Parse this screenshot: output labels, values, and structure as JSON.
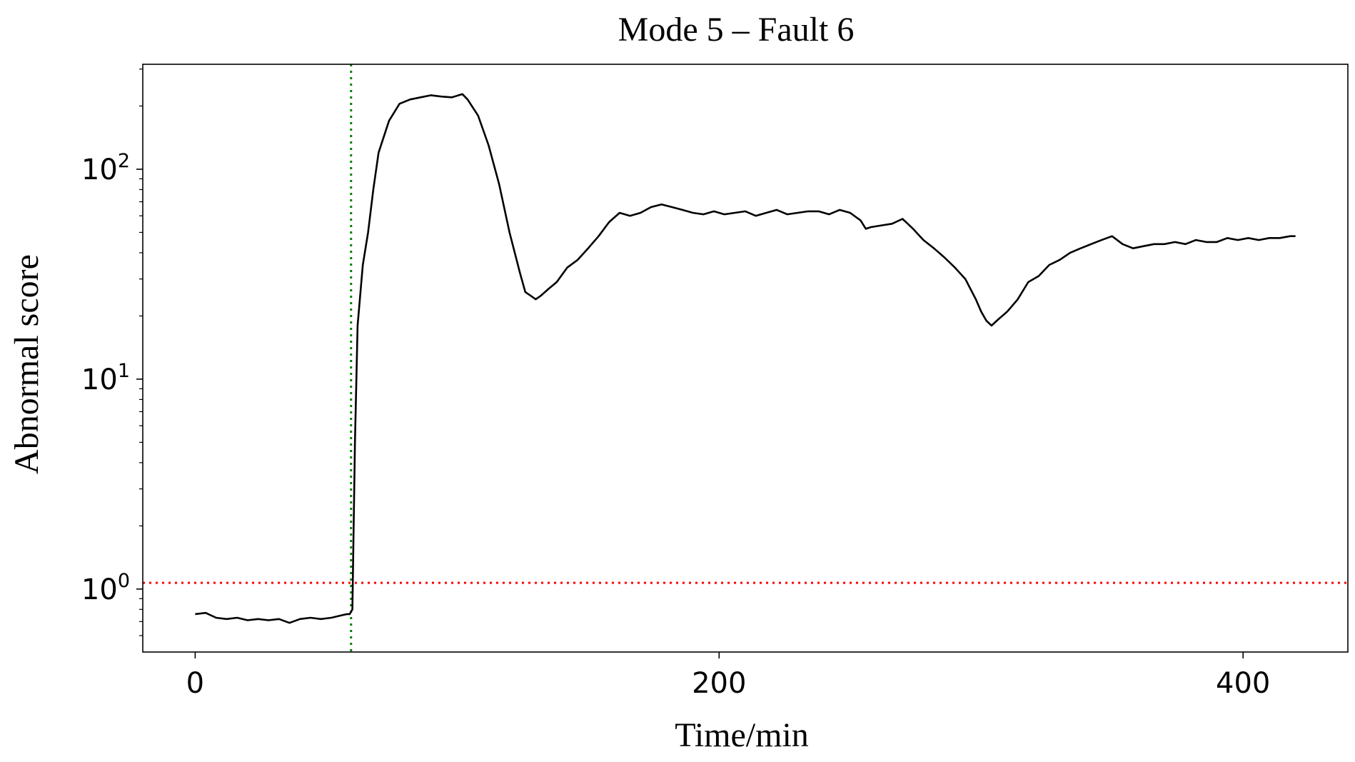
{
  "chart_data": {
    "type": "line",
    "title": "Mode 5 – Fault 6",
    "xlabel": "Time/min",
    "ylabel": "Abnormal score",
    "xlim": [
      -20,
      440
    ],
    "ylim_log10": [
      -0.3,
      2.5
    ],
    "yscale": "log",
    "x_ticks": [
      {
        "value": 0,
        "label": "0"
      },
      {
        "value": 200,
        "label": "200"
      },
      {
        "value": 400,
        "label": "400"
      }
    ],
    "y_ticks": [
      {
        "value": 1,
        "base": "10",
        "exp": "0"
      },
      {
        "value": 10,
        "base": "10",
        "exp": "1"
      },
      {
        "value": 100,
        "base": "10",
        "exp": "2"
      }
    ],
    "grid": false,
    "threshold": {
      "value": 1.07,
      "color": "#ff0000",
      "style": "dotted"
    },
    "fault_onset": {
      "x": 59.5,
      "color": "#008000",
      "style": "dotted"
    },
    "series": [
      {
        "color": "#000000",
        "x": [
          0,
          4,
          8,
          12,
          16,
          20,
          24,
          28,
          32,
          36,
          40,
          44,
          48,
          52,
          56,
          58,
          59,
          60,
          61,
          62,
          64,
          66,
          68,
          70,
          74,
          78,
          82,
          86,
          90,
          94,
          98,
          102,
          104,
          108,
          112,
          116,
          120,
          124,
          126,
          128,
          130,
          132,
          135,
          138,
          142,
          146,
          150,
          154,
          158,
          162,
          166,
          170,
          174,
          178,
          182,
          186,
          190,
          194,
          198,
          202,
          206,
          210,
          214,
          218,
          222,
          226,
          230,
          234,
          238,
          242,
          246,
          250,
          254,
          256,
          258,
          262,
          266,
          270,
          272,
          274,
          278,
          282,
          286,
          290,
          294,
          298,
          300,
          302,
          304,
          306,
          310,
          314,
          318,
          322,
          326,
          330,
          334,
          338,
          342,
          346,
          350,
          354,
          358,
          362,
          366,
          370,
          374,
          378,
          382,
          386,
          390,
          394,
          398,
          402,
          406,
          410,
          414,
          418,
          420
        ],
        "y": [
          0.76,
          0.77,
          0.73,
          0.72,
          0.73,
          0.71,
          0.72,
          0.71,
          0.72,
          0.69,
          0.72,
          0.73,
          0.72,
          0.73,
          0.75,
          0.76,
          0.76,
          0.8,
          5,
          18,
          35,
          50,
          80,
          120,
          170,
          205,
          215,
          220,
          225,
          222,
          220,
          228,
          215,
          180,
          130,
          85,
          50,
          32,
          26,
          25,
          24,
          25,
          27,
          29,
          34,
          37,
          42,
          48,
          56,
          62,
          60,
          62,
          66,
          68,
          66,
          64,
          62,
          61,
          63,
          61,
          62,
          63,
          60,
          62,
          64,
          61,
          62,
          63,
          63,
          61,
          64,
          62,
          57,
          52,
          53,
          54,
          55,
          58,
          55,
          52,
          46,
          42,
          38,
          34,
          30,
          24,
          21,
          19,
          18,
          19,
          21,
          24,
          29,
          31,
          35,
          37,
          40,
          42,
          44,
          46,
          48,
          44,
          42,
          43,
          44,
          44,
          45,
          44,
          46,
          45,
          45,
          47,
          46,
          47,
          46,
          47,
          47,
          48,
          48
        ]
      }
    ]
  }
}
